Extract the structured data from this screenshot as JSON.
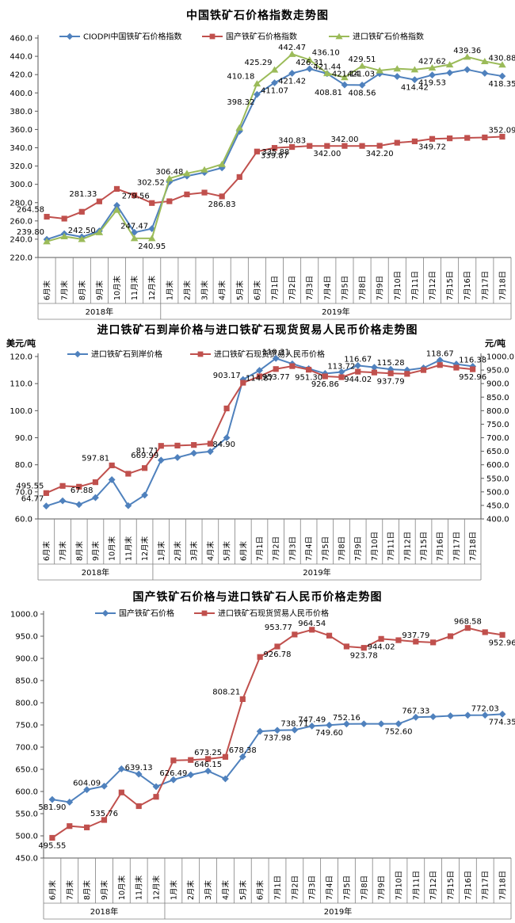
{
  "chart_data": [
    {
      "type": "line",
      "title": "中国铁矿石价格指数走势图",
      "x_categories": [
        "6月末",
        "7月末",
        "8月末",
        "9月末",
        "10月末",
        "11月末",
        "12月末",
        "1月末",
        "2月末",
        "3月末",
        "4月末",
        "5月末",
        "6月末",
        "7月1日",
        "7月2日",
        "7月3日",
        "7月4日",
        "7月5日",
        "7月8日",
        "7月9日",
        "7月10日",
        "7月11日",
        "7月12日",
        "7月15日",
        "7月16日",
        "7月17日",
        "7月18日"
      ],
      "year_groups": [
        {
          "label": "2018年",
          "count": 7
        },
        {
          "label": "2019年",
          "count": 20
        }
      ],
      "axes": {
        "left": {
          "min": 220.0,
          "max": 460.0,
          "step": 20.0
        }
      },
      "legend_position": "top",
      "grid": false,
      "series": [
        {
          "name": "CIODPI中国铁矿石价格指数",
          "color": "#4F81BD",
          "marker": "diamond",
          "axis": "left",
          "values": [
            239.8,
            246.0,
            242.5,
            249.0,
            277.0,
            247.47,
            251.5,
            302.52,
            309.0,
            313.0,
            318.0,
            358.0,
            398.32,
            411.07,
            421.42,
            426.31,
            421.14,
            408.81,
            408.56,
            421.03,
            418.0,
            414.42,
            419.53,
            422.0,
            425.5,
            421.5,
            418.35
          ],
          "labels": [
            {
              "i": 0,
              "t": "239.80",
              "p": "al"
            },
            {
              "i": 2,
              "t": "242.50",
              "p": "a"
            },
            {
              "i": 5,
              "t": "247.47",
              "p": "a"
            },
            {
              "i": 7,
              "t": "302.52",
              "p": "l"
            },
            {
              "i": 12,
              "t": "398.32",
              "p": "bl"
            },
            {
              "i": 13,
              "t": "411.07",
              "p": "b"
            },
            {
              "i": 14,
              "t": "421.42",
              "p": "b"
            },
            {
              "i": 15,
              "t": "426.31",
              "p": "a"
            },
            {
              "i": 16,
              "t": "421.14",
              "p": "r"
            },
            {
              "i": 17,
              "t": "408.81",
              "p": "bl"
            },
            {
              "i": 18,
              "t": "408.56",
              "p": "b"
            },
            {
              "i": 19,
              "t": "421.03",
              "p": "l"
            },
            {
              "i": 21,
              "t": "414.42",
              "p": "b"
            },
            {
              "i": 22,
              "t": "419.53",
              "p": "b"
            },
            {
              "i": 26,
              "t": "418.35",
              "p": "b"
            }
          ]
        },
        {
          "name": "国产铁矿石价格指数",
          "color": "#C0504D",
          "marker": "square",
          "axis": "left",
          "values": [
            264.58,
            262.5,
            270.0,
            281.33,
            295.0,
            288.0,
            279.56,
            281.5,
            289.0,
            291.0,
            286.83,
            308.0,
            335.88,
            339.87,
            340.83,
            342.0,
            342.0,
            342.0,
            342.0,
            342.2,
            345.5,
            347.0,
            349.72,
            350.3,
            350.8,
            351.3,
            352.09
          ],
          "labels": [
            {
              "i": 0,
              "t": "264.58",
              "p": "al"
            },
            {
              "i": 3,
              "t": "281.33",
              "p": "al"
            },
            {
              "i": 6,
              "t": "279.56",
              "p": "al"
            },
            {
              "i": 10,
              "t": "286.83",
              "p": "b"
            },
            {
              "i": 12,
              "t": "335.88",
              "p": "r"
            },
            {
              "i": 13,
              "t": "339.87",
              "p": "b"
            },
            {
              "i": 14,
              "t": "340.83",
              "p": "a"
            },
            {
              "i": 16,
              "t": "342.00",
              "p": "b"
            },
            {
              "i": 17,
              "t": "342.00",
              "p": "a"
            },
            {
              "i": 19,
              "t": "342.20",
              "p": "b"
            },
            {
              "i": 22,
              "t": "349.72",
              "p": "b"
            },
            {
              "i": 26,
              "t": "352.09",
              "p": "a"
            }
          ]
        },
        {
          "name": "进口铁矿石价格指数",
          "color": "#9BBB59",
          "marker": "triangle",
          "axis": "left",
          "values": [
            237.5,
            243.0,
            240.0,
            247.5,
            272.0,
            241.0,
            240.95,
            306.48,
            312.0,
            316.0,
            322.0,
            362.0,
            410.18,
            425.29,
            442.47,
            436.1,
            421.44,
            417.0,
            429.51,
            424.5,
            426.5,
            425.5,
            427.62,
            431.0,
            439.36,
            434.5,
            430.88
          ],
          "labels": [
            {
              "i": 6,
              "t": "240.95",
              "p": "b"
            },
            {
              "i": 7,
              "t": "306.48",
              "p": "a"
            },
            {
              "i": 12,
              "t": "410.18",
              "p": "al"
            },
            {
              "i": 13,
              "t": "425.29",
              "p": "al"
            },
            {
              "i": 14,
              "t": "442.47",
              "p": "a"
            },
            {
              "i": 15,
              "t": "436.10",
              "p": "ar"
            },
            {
              "i": 16,
              "t": "421.44",
              "p": "a"
            },
            {
              "i": 18,
              "t": "429.51",
              "p": "a"
            },
            {
              "i": 22,
              "t": "427.62",
              "p": "a"
            },
            {
              "i": 24,
              "t": "439.36",
              "p": "a"
            },
            {
              "i": 26,
              "t": "430.88",
              "p": "a"
            }
          ]
        }
      ]
    },
    {
      "type": "line",
      "title": "进口铁矿石到岸价格与进口铁矿石现货贸易人民币价格走势图",
      "x_categories": [
        "6月末",
        "7月末",
        "8月末",
        "9月末",
        "10月末",
        "11月末",
        "12月末",
        "1月末",
        "2月末",
        "3月末",
        "4月末",
        "5月末",
        "6月末",
        "7月1日",
        "7月2日",
        "7月3日",
        "7月4日",
        "7月5日",
        "7月8日",
        "7月9日",
        "7月10日",
        "7月11日",
        "7月12日",
        "7月15日",
        "7月16日",
        "7月17日",
        "7月18日"
      ],
      "year_groups": [
        {
          "label": "2018年",
          "count": 7
        },
        {
          "label": "2019年",
          "count": 20
        }
      ],
      "axes": {
        "left": {
          "min": 60.0,
          "max": 120.0,
          "step": 10.0,
          "unit": "美元/吨"
        },
        "right": {
          "min": 400.0,
          "max": 1000.0,
          "step": 50.0,
          "unit": "元/吨"
        }
      },
      "legend_position": "top",
      "grid": false,
      "series": [
        {
          "name": "进口铁矿石到岸价格",
          "color": "#4F81BD",
          "marker": "diamond",
          "axis": "left",
          "values": [
            64.77,
            66.7,
            65.3,
            67.88,
            74.5,
            64.9,
            68.8,
            81.71,
            82.7,
            84.3,
            84.9,
            90.0,
            111.5,
            114.87,
            119.31,
            117.3,
            115.5,
            113.72,
            114.3,
            116.67,
            116.0,
            115.28,
            115.0,
            115.8,
            118.67,
            117.2,
            116.38
          ],
          "labels": [
            {
              "i": 0,
              "t": "64.77",
              "p": "al"
            },
            {
              "i": 3,
              "t": "67.88",
              "p": "al"
            },
            {
              "i": 7,
              "t": "81.71",
              "p": "al",
              "oy": -3
            },
            {
              "i": 10,
              "t": "84.90",
              "p": "ar"
            },
            {
              "i": 13,
              "t": "114.87",
              "p": "b"
            },
            {
              "i": 14,
              "t": "119.31",
              "p": "a"
            },
            {
              "i": 17,
              "t": "113.72",
              "p": "ar"
            },
            {
              "i": 19,
              "t": "116.67",
              "p": "a"
            },
            {
              "i": 21,
              "t": "115.28",
              "p": "a"
            },
            {
              "i": 24,
              "t": "118.67",
              "p": "a"
            },
            {
              "i": 26,
              "t": "116.38",
              "p": "a"
            }
          ]
        },
        {
          "name": "进口铁矿石现货贸易人民币价格",
          "color": "#C0504D",
          "marker": "square",
          "axis": "right",
          "values": [
            495.55,
            522.0,
            519.0,
            535.76,
            597.81,
            567.0,
            588.0,
            669.99,
            671.0,
            673.25,
            678.0,
            808.21,
            903.17,
            926.78,
            953.77,
            964.54,
            951.3,
            926.86,
            923.78,
            944.02,
            941.0,
            937.79,
            936.0,
            950.0,
            968.58,
            959.0,
            952.96
          ],
          "labels": [
            {
              "i": 0,
              "t": "495.55",
              "p": "al"
            },
            {
              "i": 4,
              "t": "597.81",
              "p": "al"
            },
            {
              "i": 7,
              "t": "669.99",
              "p": "bl",
              "oy": 2
            },
            {
              "i": 12,
              "t": "903.17",
              "p": "al"
            },
            {
              "i": 14,
              "t": "953.77",
              "p": "b"
            },
            {
              "i": 16,
              "t": "951.30",
              "p": "b"
            },
            {
              "i": 17,
              "t": "926.86",
              "p": "b"
            },
            {
              "i": 19,
              "t": "944.02",
              "p": "b"
            },
            {
              "i": 21,
              "t": "937.79",
              "p": "b"
            },
            {
              "i": 26,
              "t": "952.96",
              "p": "b"
            }
          ]
        }
      ]
    },
    {
      "type": "line",
      "title": "国产铁矿石价格与进口铁矿石人民币价格走势图",
      "x_categories": [
        "6月末",
        "7月末",
        "8月末",
        "9月末",
        "10月末",
        "11月末",
        "12月末",
        "1月末",
        "2月末",
        "3月末",
        "4月末",
        "5月末",
        "6月末",
        "7月1日",
        "7月2日",
        "7月3日",
        "7月4日",
        "7月5日",
        "7月8日",
        "7月9日",
        "7月10日",
        "7月11日",
        "7月12日",
        "7月15日",
        "7月16日",
        "7月17日",
        "7月18日"
      ],
      "year_groups": [
        {
          "label": "2018年",
          "count": 7
        },
        {
          "label": "2019年",
          "count": 20
        }
      ],
      "axes": {
        "left": {
          "min": 450.0,
          "max": 1000.0,
          "step": 50.0
        }
      },
      "legend_position": "top",
      "grid": false,
      "series": [
        {
          "name": "国产铁矿石价格",
          "color": "#4F81BD",
          "marker": "diamond",
          "axis": "left",
          "values": [
            581.9,
            576.0,
            604.09,
            612.0,
            651.0,
            639.13,
            611.0,
            626.49,
            637.5,
            646.15,
            628.6,
            678.38,
            735.5,
            737.98,
            738.71,
            747.49,
            749.6,
            752.16,
            752.4,
            752.5,
            752.6,
            767.33,
            768.5,
            770.5,
            771.8,
            772.03,
            774.35
          ],
          "labels": [
            {
              "i": 0,
              "t": "581.90",
              "p": "b"
            },
            {
              "i": 2,
              "t": "604.09",
              "p": "a"
            },
            {
              "i": 5,
              "t": "639.13",
              "p": "a"
            },
            {
              "i": 7,
              "t": "626.49",
              "p": "a"
            },
            {
              "i": 9,
              "t": "646.15",
              "p": "a"
            },
            {
              "i": 11,
              "t": "678.38",
              "p": "a"
            },
            {
              "i": 13,
              "t": "737.98",
              "p": "b"
            },
            {
              "i": 14,
              "t": "738.71",
              "p": "a"
            },
            {
              "i": 15,
              "t": "747.49",
              "p": "a"
            },
            {
              "i": 16,
              "t": "749.60",
              "p": "b"
            },
            {
              "i": 17,
              "t": "752.16",
              "p": "a"
            },
            {
              "i": 20,
              "t": "752.60",
              "p": "b"
            },
            {
              "i": 21,
              "t": "767.33",
              "p": "a"
            },
            {
              "i": 25,
              "t": "772.03",
              "p": "a"
            },
            {
              "i": 26,
              "t": "774.35",
              "p": "b"
            }
          ]
        },
        {
          "name": "进口铁矿石现货贸易人民币价格",
          "color": "#C0504D",
          "marker": "square",
          "axis": "left",
          "values": [
            495.55,
            522.0,
            519.0,
            535.76,
            597.81,
            567.0,
            588.0,
            669.99,
            671.0,
            673.25,
            678.0,
            808.21,
            903.17,
            926.78,
            953.77,
            964.54,
            951.3,
            926.86,
            923.78,
            944.02,
            941.0,
            937.79,
            936.0,
            950.0,
            968.58,
            959.0,
            952.96
          ],
          "labels": [
            {
              "i": 0,
              "t": "495.55",
              "p": "b"
            },
            {
              "i": 3,
              "t": "535.76",
              "p": "a"
            },
            {
              "i": 9,
              "t": "673.25",
              "p": "a"
            },
            {
              "i": 11,
              "t": "808.21",
              "p": "al"
            },
            {
              "i": 13,
              "t": "926.78",
              "p": "b"
            },
            {
              "i": 14,
              "t": "953.77",
              "p": "al"
            },
            {
              "i": 15,
              "t": "964.54",
              "p": "a"
            },
            {
              "i": 18,
              "t": "923.78",
              "p": "b"
            },
            {
              "i": 19,
              "t": "944.02",
              "p": "b"
            },
            {
              "i": 21,
              "t": "937.79",
              "p": "a"
            },
            {
              "i": 24,
              "t": "968.58",
              "p": "a"
            },
            {
              "i": 26,
              "t": "952.96",
              "p": "b"
            }
          ]
        }
      ]
    }
  ]
}
